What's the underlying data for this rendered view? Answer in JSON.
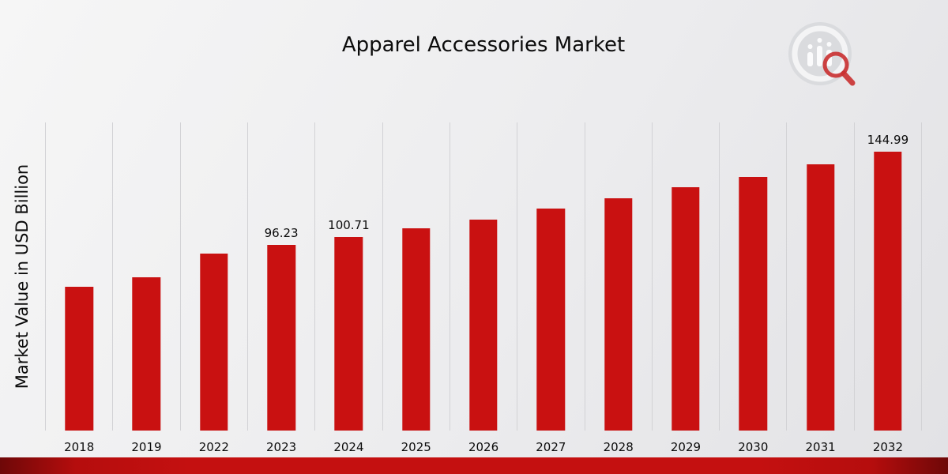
{
  "page": {
    "title": "Apparel Accessories Market"
  },
  "chart_data": {
    "type": "bar",
    "title": "Apparel Accessories Market",
    "xlabel": "",
    "ylabel": "Market Value in USD Billion",
    "categories": [
      "2018",
      "2019",
      "2022",
      "2023",
      "2024",
      "2025",
      "2026",
      "2027",
      "2028",
      "2029",
      "2030",
      "2031",
      "2032"
    ],
    "values": [
      74.5,
      79.8,
      91.8,
      96.23,
      100.71,
      105.0,
      109.5,
      115.2,
      120.6,
      126.3,
      131.5,
      138.2,
      144.99
    ],
    "data_labels": [
      "",
      "",
      "",
      "96.23",
      "100.71",
      "",
      "",
      "",
      "",
      "",
      "",
      "",
      "144.99"
    ],
    "bar_color": "#c91111",
    "ylim": [
      0,
      160
    ],
    "grid": "vertical-only",
    "legend": "none"
  },
  "logo": {
    "name": "bar-chart-magnifier-logo"
  }
}
